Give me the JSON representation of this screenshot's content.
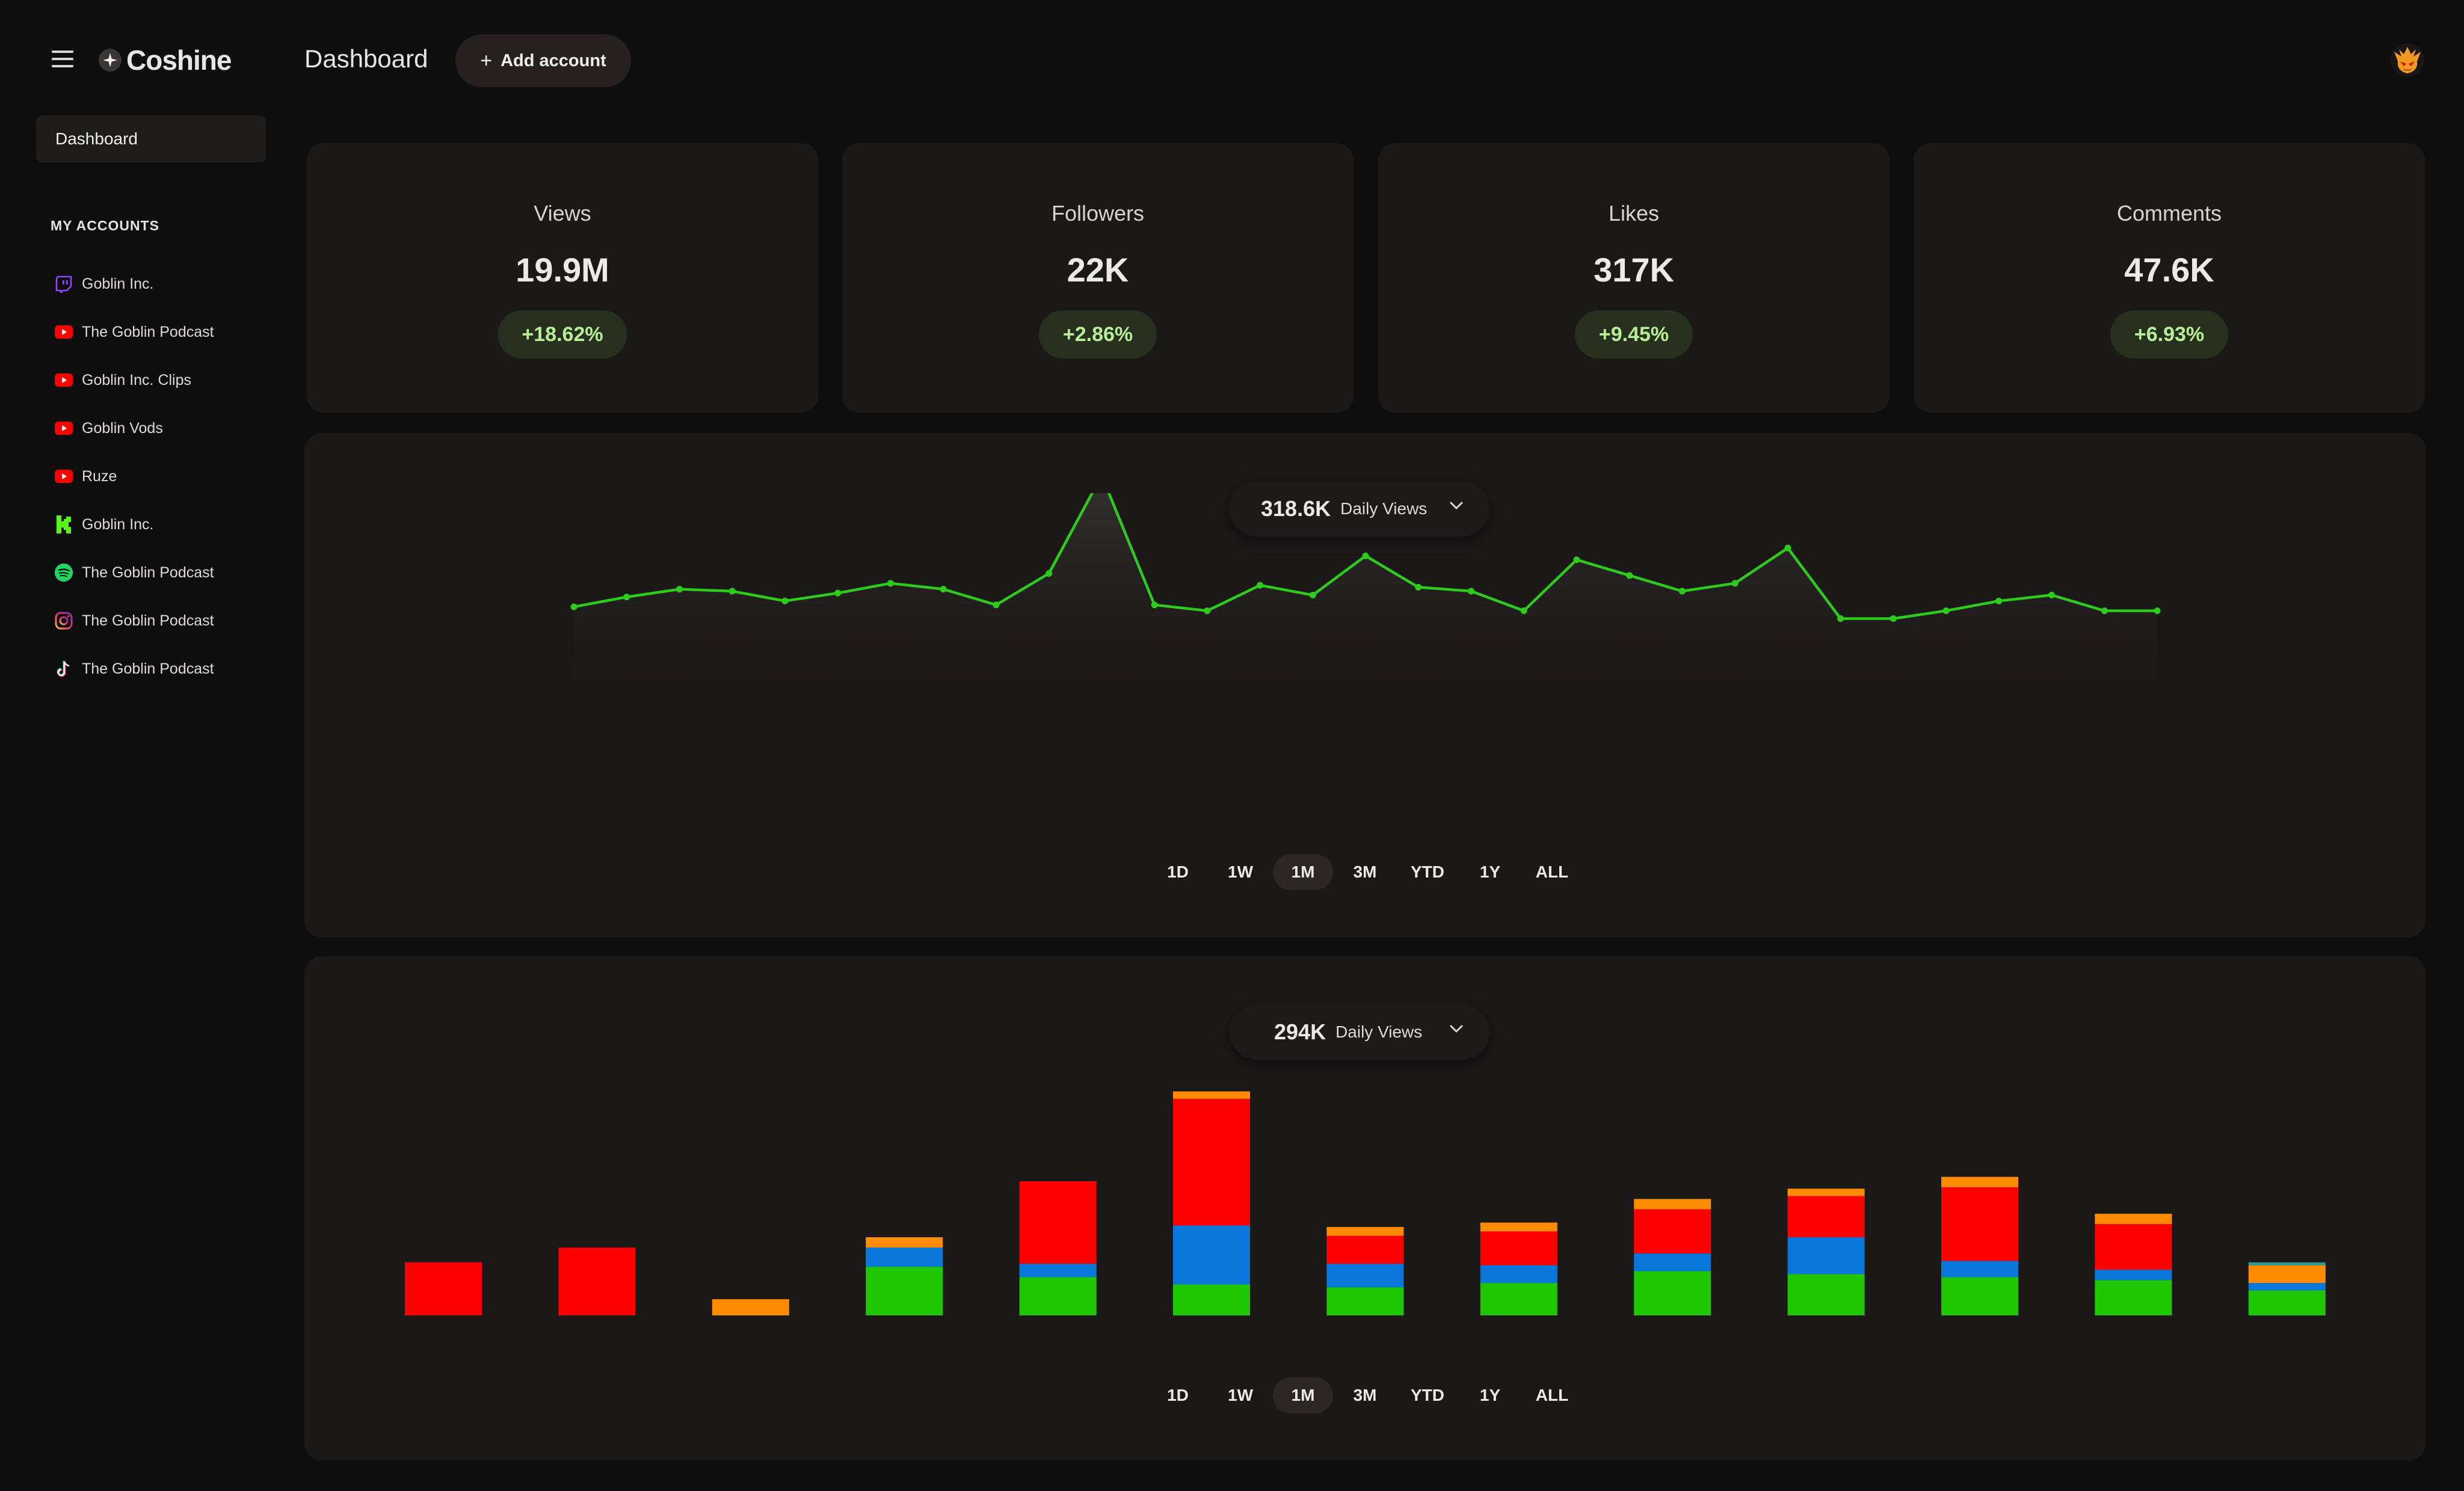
{
  "app": {
    "name": "Coshine",
    "page_title": "Dashboard"
  },
  "header": {
    "add_account_label": "Add account"
  },
  "sidebar": {
    "dashboard_label": "Dashboard",
    "section_heading": "MY ACCOUNTS",
    "accounts": [
      {
        "name": "Goblin Inc.",
        "platform": "twitch",
        "icon": "twitch-icon",
        "color": "#9146ff"
      },
      {
        "name": "The Goblin Podcast",
        "platform": "youtube",
        "icon": "youtube-icon",
        "color": "#ff0000"
      },
      {
        "name": "Goblin Inc. Clips",
        "platform": "youtube",
        "icon": "youtube-icon",
        "color": "#ff0000"
      },
      {
        "name": "Goblin Vods",
        "platform": "youtube",
        "icon": "youtube-icon",
        "color": "#ff0000"
      },
      {
        "name": "Ruze",
        "platform": "youtube",
        "icon": "youtube-icon",
        "color": "#ff0000"
      },
      {
        "name": "Goblin Inc.",
        "platform": "kick",
        "icon": "kick-icon",
        "color": "#53fc18"
      },
      {
        "name": "The Goblin Podcast",
        "platform": "spotify",
        "icon": "spotify-icon",
        "color": "#1ed760"
      },
      {
        "name": "The Goblin Podcast",
        "platform": "instagram",
        "icon": "instagram-icon",
        "color": "#e1306c"
      },
      {
        "name": "The Goblin Podcast",
        "platform": "tiktok",
        "icon": "tiktok-icon",
        "color": "#25f4ee"
      }
    ]
  },
  "stats": [
    {
      "label": "Views",
      "value": "19.9M",
      "change": "+18.62%"
    },
    {
      "label": "Followers",
      "value": "22K",
      "change": "+2.86%"
    },
    {
      "label": "Likes",
      "value": "317K",
      "change": "+9.45%"
    },
    {
      "label": "Comments",
      "value": "47.6K",
      "change": "+6.93%"
    }
  ],
  "line_panel": {
    "total": "318.6K",
    "metric_label": "Daily Views",
    "ranges": [
      "1D",
      "1W",
      "1M",
      "3M",
      "YTD",
      "1Y",
      "ALL"
    ],
    "active_range": "1M"
  },
  "bar_panel": {
    "total": "294K",
    "metric_label": "Daily Views",
    "ranges": [
      "1D",
      "1W",
      "1M",
      "3M",
      "YTD",
      "1Y",
      "ALL"
    ],
    "active_range": "1M"
  },
  "chart_data": [
    {
      "type": "area",
      "grid": false,
      "ylim": [
        0,
        200
      ],
      "line_color": "#2ecc1a",
      "x": [
        1,
        2,
        3,
        4,
        5,
        6,
        7,
        8,
        9,
        10,
        11,
        12,
        13,
        14,
        15,
        16,
        17,
        18,
        19,
        20,
        21,
        22,
        23,
        24,
        25,
        26,
        27,
        28,
        29,
        30,
        31
      ],
      "series": [
        {
          "values": [
            62,
            72,
            80,
            78,
            68,
            76,
            86,
            80,
            64,
            96,
            196,
            64,
            58,
            84,
            74,
            114,
            82,
            78,
            58,
            110,
            94,
            78,
            86,
            122,
            50,
            50,
            58,
            68,
            74,
            58,
            58
          ]
        }
      ]
    },
    {
      "type": "bar",
      "stacked": true,
      "grid": false,
      "ylim": [
        0,
        150
      ],
      "categories": [
        1,
        2,
        3,
        4,
        5,
        6,
        7,
        8,
        9,
        10,
        11,
        12,
        13
      ],
      "series": [
        {
          "color": "#1ec700",
          "values": [
            0,
            0,
            0,
            33,
            26,
            21,
            19,
            22,
            30,
            28,
            26,
            24,
            17
          ]
        },
        {
          "color": "#0a78db",
          "values": [
            0,
            0,
            0,
            13,
            9,
            40,
            16,
            12,
            12,
            25,
            11,
            7,
            5
          ]
        },
        {
          "color": "#ff0000",
          "values": [
            36,
            46,
            0,
            0,
            56,
            86,
            19,
            23,
            30,
            28,
            50,
            31,
            0
          ]
        },
        {
          "color": "#ff8c00",
          "values": [
            0,
            0,
            11,
            7,
            0,
            5,
            6,
            6,
            7,
            5,
            7,
            7,
            12
          ]
        },
        {
          "color": "#2e9b9b",
          "values": [
            0,
            0,
            0,
            0,
            0,
            0,
            0,
            0,
            0,
            0,
            0,
            0,
            2
          ]
        }
      ]
    }
  ]
}
